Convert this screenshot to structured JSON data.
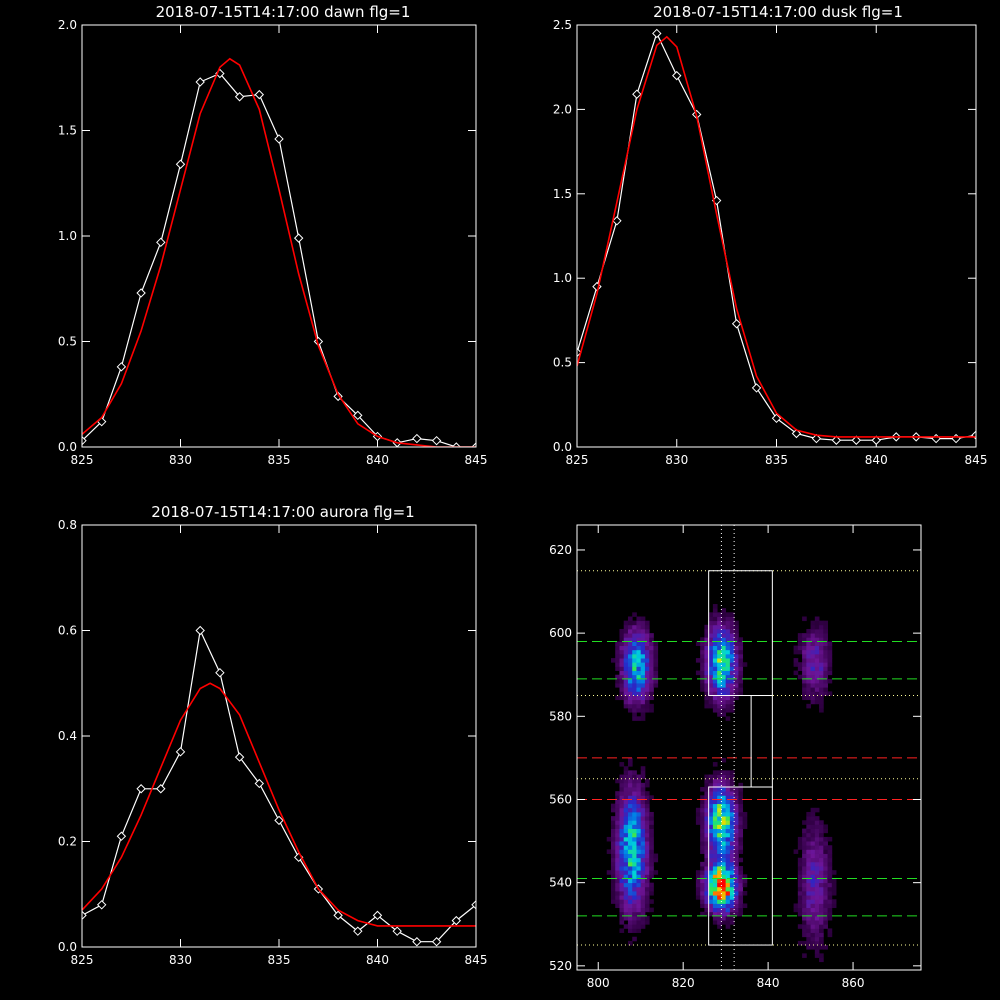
{
  "chart_data": [
    {
      "type": "line",
      "title": "2018-07-15T14:17:00 dawn flg=1",
      "xlim": [
        825,
        845
      ],
      "ylim": [
        0,
        2.0
      ],
      "x_ticks": [
        "825",
        "830",
        "835",
        "840",
        "845"
      ],
      "y_ticks": [
        "0.0",
        "0.5",
        "1.0",
        "1.5",
        "2.0"
      ],
      "grid": false,
      "series": [
        {
          "color": "#ffffff",
          "marker": "diamond",
          "x": [
            825,
            826,
            827,
            828,
            829,
            830,
            831,
            832,
            833,
            834,
            835,
            836,
            837,
            838,
            839,
            840,
            841,
            842,
            843,
            844,
            845
          ],
          "y": [
            0.03,
            0.12,
            0.38,
            0.73,
            0.97,
            1.34,
            1.73,
            1.77,
            1.66,
            1.67,
            1.46,
            0.99,
            0.5,
            0.24,
            0.15,
            0.05,
            0.02,
            0.04,
            0.03,
            0.0,
            0.0
          ]
        },
        {
          "color": "#ff0000",
          "marker": "none",
          "x": [
            825,
            826,
            827,
            828,
            829,
            830,
            831,
            832,
            832.5,
            833,
            834,
            835,
            836,
            837,
            838,
            839,
            840,
            841,
            842,
            843,
            844,
            845
          ],
          "y": [
            0.06,
            0.14,
            0.3,
            0.55,
            0.86,
            1.22,
            1.58,
            1.8,
            1.84,
            1.81,
            1.6,
            1.22,
            0.82,
            0.48,
            0.25,
            0.11,
            0.05,
            0.02,
            0.01,
            0.0,
            0.0,
            0.0
          ]
        }
      ]
    },
    {
      "type": "line",
      "title": "2018-07-15T14:17:00 dusk flg=1",
      "xlim": [
        825,
        845
      ],
      "ylim": [
        0,
        2.5
      ],
      "x_ticks": [
        "825",
        "830",
        "835",
        "840",
        "845"
      ],
      "y_ticks": [
        "0.0",
        "0.5",
        "1.0",
        "1.5",
        "2.0",
        "2.5"
      ],
      "grid": false,
      "series": [
        {
          "color": "#ffffff",
          "marker": "diamond",
          "x": [
            825,
            826,
            827,
            828,
            829,
            830,
            831,
            832,
            833,
            834,
            835,
            836,
            837,
            838,
            839,
            840,
            841,
            842,
            843,
            844,
            845
          ],
          "y": [
            0.56,
            0.95,
            1.34,
            2.09,
            2.45,
            2.2,
            1.97,
            1.46,
            0.73,
            0.35,
            0.17,
            0.08,
            0.05,
            0.04,
            0.04,
            0.04,
            0.06,
            0.06,
            0.05,
            0.05,
            0.07
          ]
        },
        {
          "color": "#ff0000",
          "marker": "none",
          "x": [
            825,
            826,
            827,
            828,
            829,
            829.5,
            830,
            831,
            832,
            833,
            834,
            835,
            836,
            837,
            838,
            839,
            840,
            841,
            842,
            843,
            844,
            845
          ],
          "y": [
            0.48,
            0.91,
            1.45,
            2.0,
            2.38,
            2.43,
            2.37,
            1.96,
            1.38,
            0.82,
            0.42,
            0.2,
            0.1,
            0.07,
            0.06,
            0.06,
            0.06,
            0.06,
            0.06,
            0.06,
            0.06,
            0.06
          ]
        }
      ]
    },
    {
      "type": "line",
      "title": "2018-07-15T14:17:00 aurora flg=1",
      "xlim": [
        825,
        845
      ],
      "ylim": [
        0,
        0.8
      ],
      "x_ticks": [
        "825",
        "830",
        "835",
        "840",
        "845"
      ],
      "y_ticks": [
        "0.0",
        "0.2",
        "0.4",
        "0.6",
        "0.8"
      ],
      "grid": false,
      "series": [
        {
          "color": "#ffffff",
          "marker": "diamond",
          "x": [
            825,
            826,
            827,
            828,
            829,
            830,
            831,
            832,
            833,
            834,
            835,
            836,
            837,
            838,
            839,
            840,
            841,
            842,
            843,
            844,
            845
          ],
          "y": [
            0.06,
            0.08,
            0.21,
            0.3,
            0.3,
            0.37,
            0.6,
            0.52,
            0.36,
            0.31,
            0.24,
            0.17,
            0.11,
            0.06,
            0.03,
            0.06,
            0.03,
            0.01,
            0.01,
            0.05,
            0.08
          ]
        },
        {
          "color": "#ff0000",
          "marker": "none",
          "x": [
            825,
            826,
            827,
            828,
            829,
            830,
            831,
            831.5,
            832,
            833,
            834,
            835,
            836,
            837,
            838,
            839,
            840,
            841,
            842,
            843,
            844,
            845
          ],
          "y": [
            0.07,
            0.11,
            0.17,
            0.25,
            0.34,
            0.43,
            0.49,
            0.5,
            0.49,
            0.44,
            0.35,
            0.26,
            0.18,
            0.11,
            0.07,
            0.05,
            0.04,
            0.04,
            0.04,
            0.04,
            0.04,
            0.04
          ]
        }
      ]
    },
    {
      "type": "heatmap",
      "title": "",
      "xlim": [
        795,
        876
      ],
      "ylim": [
        519,
        626
      ],
      "x_ticks": [
        "800",
        "820",
        "840",
        "860"
      ],
      "y_ticks": [
        "520",
        "540",
        "560",
        "580",
        "600",
        "620"
      ],
      "colormap": "rainbow on black",
      "blobs": [
        {
          "x": 809,
          "y": 592,
          "sx": 2.5,
          "sy": 6,
          "amp": 0.6
        },
        {
          "x": 808,
          "y": 548,
          "sx": 2.5,
          "sy": 10,
          "amp": 0.65
        },
        {
          "x": 829,
          "y": 593,
          "sx": 2.5,
          "sy": 6,
          "amp": 0.7
        },
        {
          "x": 829,
          "y": 555,
          "sx": 2.5,
          "sy": 6,
          "amp": 0.75
        },
        {
          "x": 829,
          "y": 539,
          "sx": 2.5,
          "sy": 4,
          "amp": 1.0
        },
        {
          "x": 851,
          "y": 593,
          "sx": 2.5,
          "sy": 6,
          "amp": 0.3
        },
        {
          "x": 851,
          "y": 540,
          "sx": 2.5,
          "sy": 10,
          "amp": 0.3
        }
      ],
      "boxes": [
        {
          "color": "#ffffff",
          "style": "solid",
          "x": [
            826,
            841
          ],
          "y": [
            585,
            615
          ]
        },
        {
          "color": "#ffffff",
          "style": "solid",
          "x": [
            836,
            841
          ],
          "y": [
            563,
            585
          ]
        },
        {
          "color": "#ffffff",
          "style": "solid",
          "x": [
            826,
            841
          ],
          "y": [
            525,
            563
          ]
        }
      ],
      "hlines": [
        {
          "y": 615,
          "color": "#ffff99",
          "style": "dotted"
        },
        {
          "y": 585,
          "color": "#ffff99",
          "style": "dotted"
        },
        {
          "y": 565,
          "color": "#ffff99",
          "style": "dotted"
        },
        {
          "y": 525,
          "color": "#ffff99",
          "style": "dotted"
        },
        {
          "y": 598,
          "color": "#22dd22",
          "style": "dashed"
        },
        {
          "y": 589,
          "color": "#22dd22",
          "style": "dashed"
        },
        {
          "y": 570,
          "color": "#ff2222",
          "style": "dashed"
        },
        {
          "y": 560,
          "color": "#ff2222",
          "style": "dashed"
        },
        {
          "y": 541,
          "color": "#22dd22",
          "style": "dashed"
        },
        {
          "y": 532,
          "color": "#22dd22",
          "style": "dashed"
        }
      ],
      "vlines": [
        {
          "x": 829,
          "color": "#ffffff",
          "style": "dotted"
        },
        {
          "x": 832,
          "color": "#ffffff",
          "style": "dotted"
        }
      ]
    }
  ]
}
